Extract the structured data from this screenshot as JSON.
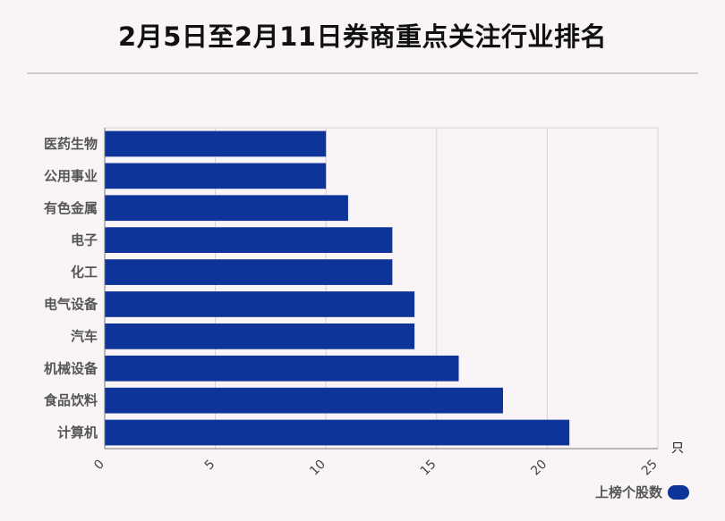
{
  "title": "2月5日至2月11日券商重点关注行业排名",
  "colors": {
    "bar": "#0e3399",
    "background": "#f9f5f6"
  },
  "chart_data": {
    "type": "bar",
    "orientation": "horizontal",
    "title": "2月5日至2月11日券商重点关注行业排名",
    "categories": [
      "医药生物",
      "公用事业",
      "有色金属",
      "电子",
      "化工",
      "电气设备",
      "汽车",
      "机械设备",
      "食品饮料",
      "计算机"
    ],
    "series": [
      {
        "name": "上榜个股数",
        "values": [
          10,
          10,
          11,
          13,
          13,
          14,
          14,
          16,
          18,
          21
        ]
      }
    ],
    "xlim": [
      0,
      25
    ],
    "xticks": [
      "0",
      "5",
      "10",
      "15",
      "20",
      "25"
    ],
    "xunit": "只",
    "grid": true,
    "legend": "bottom-right"
  }
}
